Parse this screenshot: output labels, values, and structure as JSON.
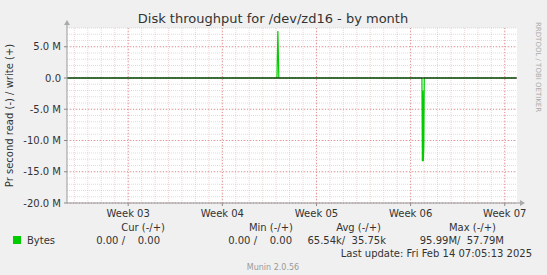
{
  "chart_data": {
    "type": "line",
    "title": "Disk throughput for /dev/zd16 - by month",
    "y_label": "Pr second read (-) / write (+)",
    "x": [
      2.36,
      4.58,
      4.59,
      4.6,
      4.61,
      6.12,
      6.125,
      6.13,
      6.135,
      6.14,
      6.145,
      7.12
    ],
    "series": [
      {
        "name": "Bytes",
        "color": "#00cc00",
        "values": [
          0,
          0,
          7500000,
          0,
          0,
          0,
          -13300000,
          -2000000,
          -13300000,
          -11000000,
          0,
          0
        ],
        "stats": [
          "0.00 /    0.00",
          "0.00 /    0.00",
          "65.54k/  35.75k",
          "95.99M/  57.79M"
        ]
      }
    ],
    "stats_headers": [
      "Cur (-/+)",
      "Min (-/+)",
      "Avg (-/+)",
      "Max (-/+)"
    ],
    "xlim": [
      2.35,
      7.13
    ],
    "xticks": [
      {
        "value": 3,
        "label": "Week 03"
      },
      {
        "value": 4,
        "label": "Week 04"
      },
      {
        "value": 5,
        "label": "Week 05"
      },
      {
        "value": 6,
        "label": "Week 06"
      },
      {
        "value": 7,
        "label": "Week 07"
      }
    ],
    "ylim": [
      -20000000,
      8000000
    ],
    "yticks": [
      {
        "value": 5000000,
        "label": "5.0 M"
      },
      {
        "value": 0,
        "label": "0.0"
      },
      {
        "value": -5000000,
        "label": "-5.0 M"
      },
      {
        "value": -10000000,
        "label": "-10.0 M"
      },
      {
        "value": -15000000,
        "label": "-15.0 M"
      },
      {
        "value": -20000000,
        "label": "-20.0 M"
      }
    ],
    "grid": true,
    "last_update": "Last update: Fri Feb 14 07:05:13 2025",
    "footer": "Munin 2.0.56",
    "watermark": "RRDTOOL / TOBI OETIKER"
  }
}
